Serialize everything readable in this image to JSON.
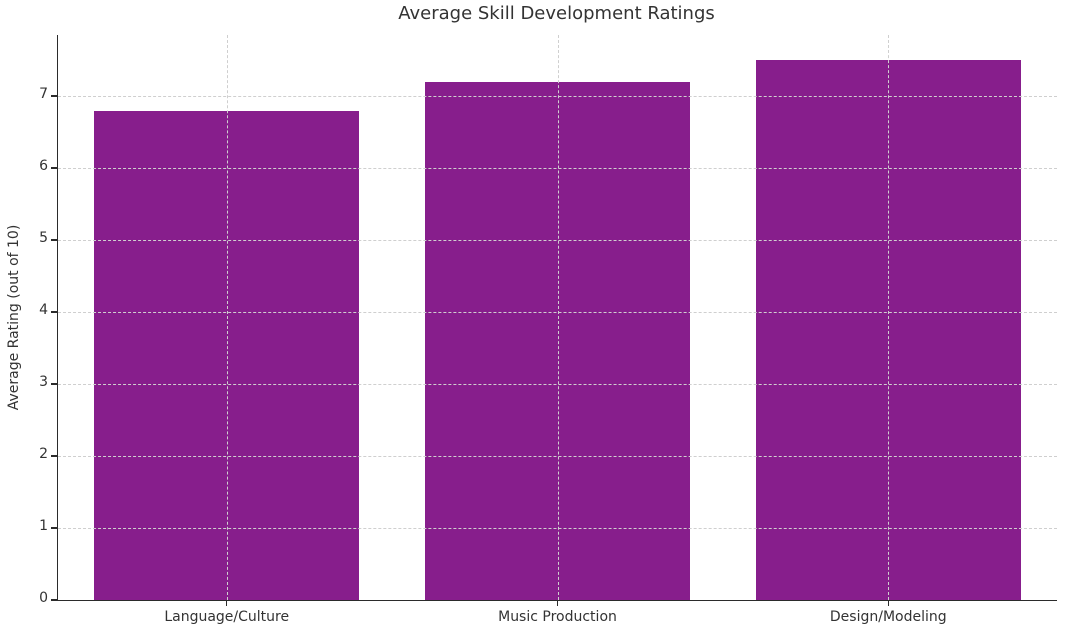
{
  "chart_data": {
    "type": "bar",
    "title": "Average Skill Development Ratings",
    "categories": [
      "Language/Culture",
      "Music Production",
      "Design/Modeling"
    ],
    "values": [
      6.8,
      7.2,
      7.5
    ],
    "xlabel": "",
    "ylabel": "Average Rating (out of 10)",
    "ylim": [
      0,
      7.85
    ],
    "yticks": [
      0,
      1,
      2,
      3,
      4,
      5,
      6,
      7
    ],
    "grid": true,
    "grid_style": "dashed",
    "legend": "none",
    "bar_color": "#871e8c",
    "grid_color": "#cfcfcf",
    "spine_color": "#2b2b2b",
    "text_color": "#333333"
  }
}
